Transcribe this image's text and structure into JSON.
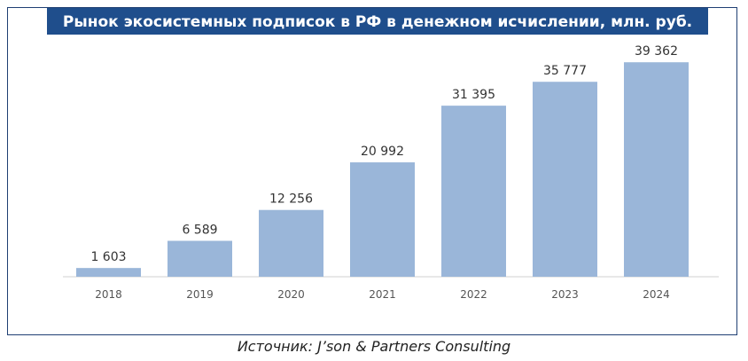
{
  "chart_data": {
    "type": "bar",
    "title": "Рынок экосистемных подписок в РФ в денежном исчислении, млн. руб.",
    "categories": [
      "2018",
      "2019",
      "2020",
      "2021",
      "2022",
      "2023",
      "2024"
    ],
    "values": [
      1603,
      6589,
      12256,
      20992,
      31395,
      35777,
      39362
    ],
    "value_labels": [
      "1 603",
      "6 589",
      "12 256",
      "20 992",
      "31 395",
      "35 777",
      "39 362"
    ],
    "xlabel": "",
    "ylabel": "",
    "ylim": [
      0,
      42000
    ],
    "grid": false,
    "legend": "none",
    "bar_color": "#9ab6d9"
  },
  "source": "Источник: J’son & Partners Consulting"
}
